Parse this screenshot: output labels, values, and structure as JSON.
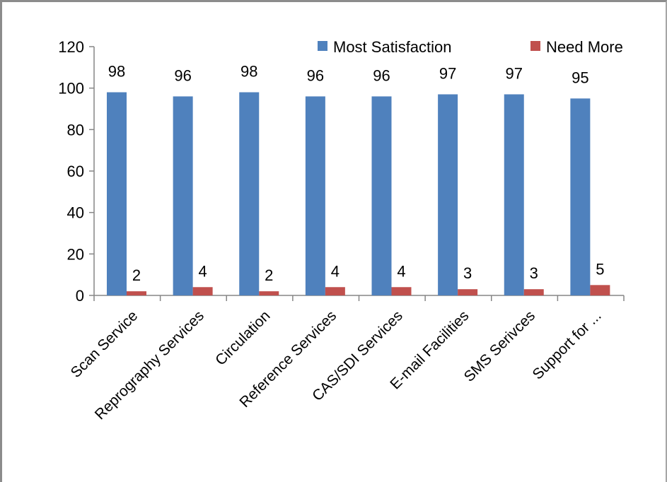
{
  "chart_data": {
    "type": "bar",
    "categories": [
      "Scan Service",
      "Reprography Services",
      "Circulation",
      "Reference Services",
      "CAS/SDI Services",
      "E-mail Facilities",
      "SMS Serivces",
      "Support for ..."
    ],
    "series": [
      {
        "name": "Most Satisfaction",
        "color": "#4F81BD",
        "values": [
          98,
          96,
          98,
          96,
          96,
          97,
          97,
          95
        ]
      },
      {
        "name": "Need More",
        "color": "#C0504D",
        "values": [
          2,
          4,
          2,
          4,
          4,
          3,
          3,
          5
        ]
      }
    ],
    "title": "",
    "xlabel": "",
    "ylabel": "",
    "ylim": [
      0,
      120
    ],
    "yticks": [
      0,
      20,
      40,
      60,
      80,
      100,
      120
    ],
    "grid": false,
    "legend_position": "top-right",
    "data_labels": true
  }
}
